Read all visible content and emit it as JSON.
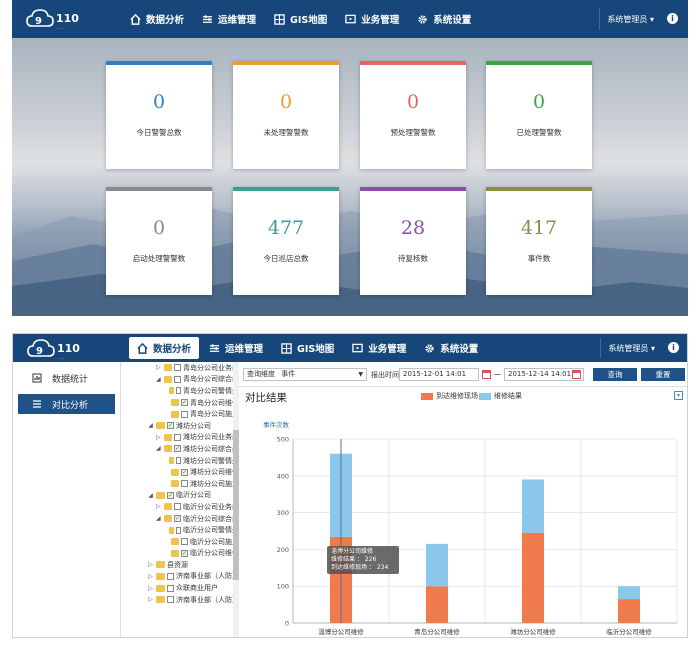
{
  "app": {
    "logo_text": "110",
    "nav": [
      "数据分析",
      "运维管理",
      "GIS地图",
      "业务管理",
      "系统设置"
    ],
    "user_menu": "系统管理员 ▾",
    "info_symbol": "i"
  },
  "dashboard": {
    "cards": [
      {
        "value": "0",
        "label": "今日警警总数",
        "accent": "#2f80c8"
      },
      {
        "value": "0",
        "label": "未处理警警数",
        "accent": "#f19a2e"
      },
      {
        "value": "0",
        "label": "预处理警警数",
        "accent": "#e0656a"
      },
      {
        "value": "0",
        "label": "已处理警警数",
        "accent": "#3ba541"
      },
      {
        "value": "0",
        "label": "启动处理警警数",
        "accent": "#888888"
      },
      {
        "value": "477",
        "label": "今日巡店总数",
        "accent": "#3d9c96"
      },
      {
        "value": "28",
        "label": "待复核数",
        "accent": "#8a4fa6"
      },
      {
        "value": "417",
        "label": "事件数",
        "accent": "#8c8a4c"
      }
    ]
  },
  "analysis": {
    "sidebar": [
      "数据统计",
      "对比分析"
    ],
    "tree": [
      {
        "indent": 1,
        "arrow": "▷",
        "type": "cb-file",
        "checked": false,
        "label": "青岛分公司业务部"
      },
      {
        "indent": 1,
        "arrow": "◢",
        "type": "cb-folder",
        "checked": false,
        "label": "青岛分公司综合部"
      },
      {
        "indent": 2,
        "arrow": "",
        "type": "cb-file",
        "checked": false,
        "label": "青岛分公司警情处"
      },
      {
        "indent": 2,
        "arrow": "",
        "type": "cb-file",
        "checked": true,
        "label": "青岛分公司维修"
      },
      {
        "indent": 2,
        "arrow": "",
        "type": "cb-file",
        "checked": false,
        "label": "青岛分公司施工"
      },
      {
        "indent": 0,
        "arrow": "◢",
        "type": "cb-folder",
        "checked": true,
        "label": "潍坊分公司"
      },
      {
        "indent": 1,
        "arrow": "▷",
        "type": "cb-file",
        "checked": false,
        "label": "潍坊分公司业务部"
      },
      {
        "indent": 1,
        "arrow": "◢",
        "type": "cb-folder",
        "checked": true,
        "label": "潍坊分公司综合部"
      },
      {
        "indent": 2,
        "arrow": "",
        "type": "cb-file",
        "checked": false,
        "label": "潍坊分公司警情处"
      },
      {
        "indent": 2,
        "arrow": "",
        "type": "cb-file",
        "checked": true,
        "label": "潍坊分公司维修"
      },
      {
        "indent": 2,
        "arrow": "",
        "type": "cb-file",
        "checked": false,
        "label": "潍坊分公司施工"
      },
      {
        "indent": 0,
        "arrow": "◢",
        "type": "cb-folder",
        "checked": true,
        "label": "临沂分公司"
      },
      {
        "indent": 1,
        "arrow": "▷",
        "type": "cb-file",
        "checked": false,
        "label": "临沂分公司业务部"
      },
      {
        "indent": 1,
        "arrow": "◢",
        "type": "cb-folder",
        "checked": true,
        "label": "临沂分公司综合部"
      },
      {
        "indent": 2,
        "arrow": "",
        "type": "cb-file",
        "checked": false,
        "label": "临沂分公司警情处"
      },
      {
        "indent": 2,
        "arrow": "",
        "type": "cb-file",
        "checked": false,
        "label": "临沂分公司施工"
      },
      {
        "indent": 2,
        "arrow": "",
        "type": "cb-file",
        "checked": true,
        "label": "临沂分公司维修"
      },
      {
        "indent": 0,
        "arrow": "▷",
        "type": "folder",
        "checked": false,
        "label": "县资源"
      },
      {
        "indent": 0,
        "arrow": "▷",
        "type": "cb-folder",
        "checked": false,
        "label": "济南事业部（人防）"
      },
      {
        "indent": 0,
        "arrow": "▷",
        "type": "cb-folder",
        "checked": false,
        "label": "众联商业用户"
      },
      {
        "indent": 0,
        "arrow": "▷",
        "type": "cb-folder",
        "checked": false,
        "label": "济南事业部（人防）"
      }
    ],
    "filter": {
      "query_type_label": "查询维度",
      "query_type_value": "事件",
      "time_label": "报出时间",
      "start": "2015-12-01 14:01",
      "end": "2015-12-14 14:01",
      "dash": "—",
      "search_button": "查询",
      "reset_button": "重置"
    },
    "panel_title": "对比结果",
    "tooltip": {
      "title": "淄博分公司维修",
      "line1": "维修结果 ： 226",
      "line2": "到达维修现场 ： 234"
    }
  },
  "chart_data": {
    "type": "bar",
    "stacked": true,
    "title": "对比结果",
    "ylabel": "事件次数",
    "ylim": [
      0,
      500
    ],
    "yticks": [
      0,
      100,
      200,
      300,
      400,
      500
    ],
    "categories": [
      "淄博分公司维修",
      "青岛分公司维修",
      "潍坊分公司维修",
      "临沂分公司维修"
    ],
    "series": [
      {
        "name": "到达维修现场",
        "color": "#ef7a4b",
        "values": [
          234,
          100,
          245,
          65
        ]
      },
      {
        "name": "维修结果",
        "color": "#8cc7ea",
        "values": [
          226,
          115,
          145,
          35
        ]
      }
    ],
    "legend": "top-center",
    "grid": true
  }
}
